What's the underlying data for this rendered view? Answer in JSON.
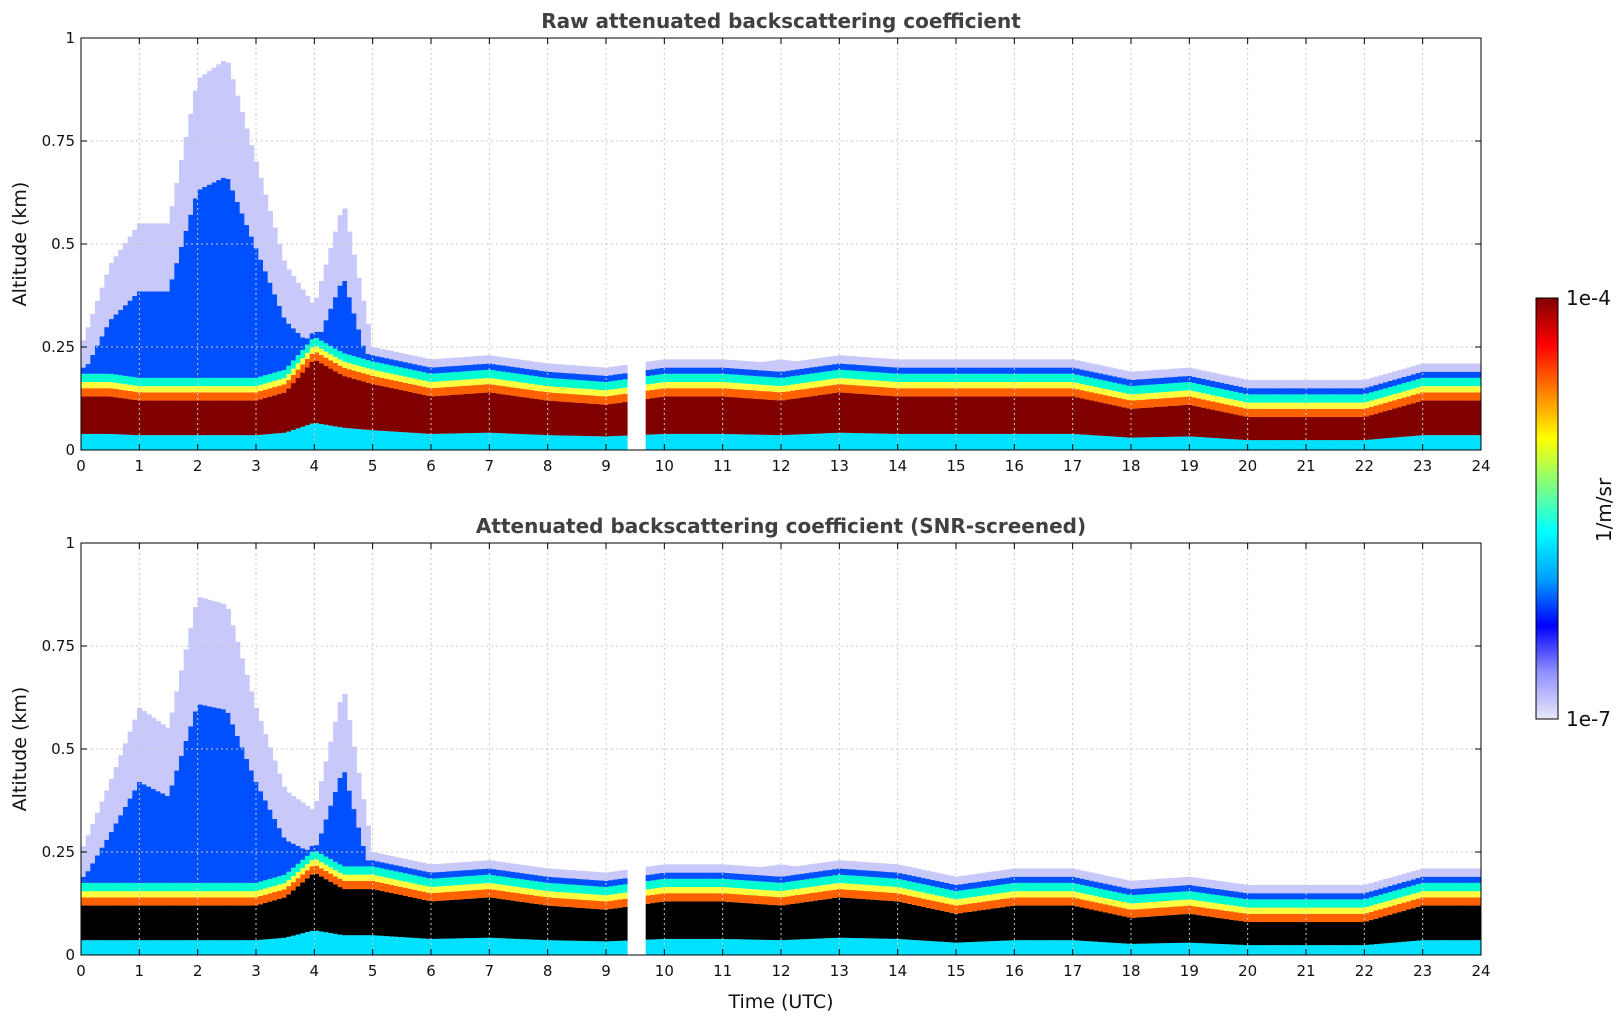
{
  "chart_data": [
    {
      "type": "heatmap",
      "title": "Raw attenuated backscattering coefficient",
      "xlabel": "",
      "ylabel": "Altitude (km)",
      "xlim": [
        0,
        24
      ],
      "ylim": [
        0,
        1
      ],
      "x_ticks": [
        "0",
        "1",
        "2",
        "3",
        "4",
        "5",
        "6",
        "7",
        "8",
        "9",
        "10",
        "11",
        "12",
        "13",
        "14",
        "15",
        "16",
        "17",
        "18",
        "19",
        "20",
        "21",
        "22",
        "23",
        "24"
      ],
      "y_ticks": [
        "0",
        "0.25",
        "0.5",
        "0.75",
        "1"
      ],
      "grid": true,
      "data_gap_utc": [
        9.4,
        9.7
      ],
      "approx_profile": {
        "time_utc": [
          0,
          0.5,
          1,
          1.5,
          2,
          2.5,
          3,
          3.5,
          4,
          4.5,
          5,
          6,
          7,
          8,
          9,
          10,
          11,
          12,
          13,
          14,
          15,
          16,
          17,
          18,
          19,
          20,
          21,
          22,
          23,
          24
        ],
        "aerosol_top_km": [
          0.25,
          0.45,
          0.55,
          0.55,
          0.9,
          0.95,
          0.7,
          0.45,
          0.35,
          0.6,
          0.25,
          0.22,
          0.22,
          0.2,
          0.2,
          0.2,
          0.2,
          0.22,
          0.2,
          0.18,
          0.18,
          0.17,
          0.17,
          0.17,
          0.17,
          0.16,
          0.15,
          0.15,
          0.18,
          0.18
        ],
        "dense_layer_top_km": [
          0.13,
          0.13,
          0.12,
          0.12,
          0.12,
          0.12,
          0.12,
          0.14,
          0.22,
          0.18,
          0.16,
          0.13,
          0.14,
          0.12,
          0.11,
          0.13,
          0.13,
          0.12,
          0.14,
          0.13,
          0.13,
          0.13,
          0.13,
          0.1,
          0.11,
          0.08,
          0.08,
          0.08,
          0.12,
          0.12
        ]
      }
    },
    {
      "type": "heatmap",
      "title": "Attenuated backscattering coefficient (SNR-screened)",
      "xlabel": "Time (UTC)",
      "ylabel": "Altitude (km)",
      "xlim": [
        0,
        24
      ],
      "ylim": [
        0,
        1
      ],
      "x_ticks": [
        "0",
        "1",
        "2",
        "3",
        "4",
        "5",
        "6",
        "7",
        "8",
        "9",
        "10",
        "11",
        "12",
        "13",
        "14",
        "15",
        "16",
        "17",
        "18",
        "19",
        "20",
        "21",
        "22",
        "23",
        "24"
      ],
      "y_ticks": [
        "0",
        "0.25",
        "0.5",
        "0.75",
        "1"
      ],
      "grid": true,
      "data_gap_utc": [
        9.4,
        9.7
      ],
      "approx_profile": {
        "time_utc": [
          0,
          0.5,
          1,
          1.5,
          2,
          2.5,
          3,
          3.5,
          4,
          4.5,
          5,
          6,
          7,
          8,
          9,
          10,
          11,
          12,
          13,
          14,
          15,
          16,
          17,
          18,
          19,
          20,
          21,
          22,
          23,
          24
        ],
        "aerosol_top_km": [
          0.25,
          0.42,
          0.6,
          0.55,
          0.87,
          0.85,
          0.6,
          0.4,
          0.35,
          0.65,
          0.25,
          0.22,
          0.22,
          0.2,
          0.2,
          0.2,
          0.2,
          0.22,
          0.2,
          0.18,
          0.18,
          0.17,
          0.17,
          0.17,
          0.17,
          0.16,
          0.15,
          0.15,
          0.18,
          0.18
        ],
        "dense_layer_top_km": [
          0.12,
          0.12,
          0.12,
          0.12,
          0.12,
          0.12,
          0.12,
          0.14,
          0.2,
          0.16,
          0.16,
          0.13,
          0.14,
          0.12,
          0.11,
          0.13,
          0.13,
          0.12,
          0.14,
          0.13,
          0.1,
          0.12,
          0.12,
          0.09,
          0.1,
          0.08,
          0.08,
          0.08,
          0.12,
          0.12
        ]
      }
    }
  ],
  "colorbar": {
    "label": "1/m/sr",
    "max_label": "1e-4",
    "min_label": "1e-7",
    "scale": "log",
    "colormap": "jet",
    "stops": [
      "#e8e8fa",
      "#9090ff",
      "#0000ff",
      "#00a0ff",
      "#00ffff",
      "#80ff80",
      "#ffff00",
      "#ff8000",
      "#ff0000",
      "#800000"
    ]
  },
  "colors": {
    "screened_saturation": "#000000",
    "title_text": "#404040"
  }
}
